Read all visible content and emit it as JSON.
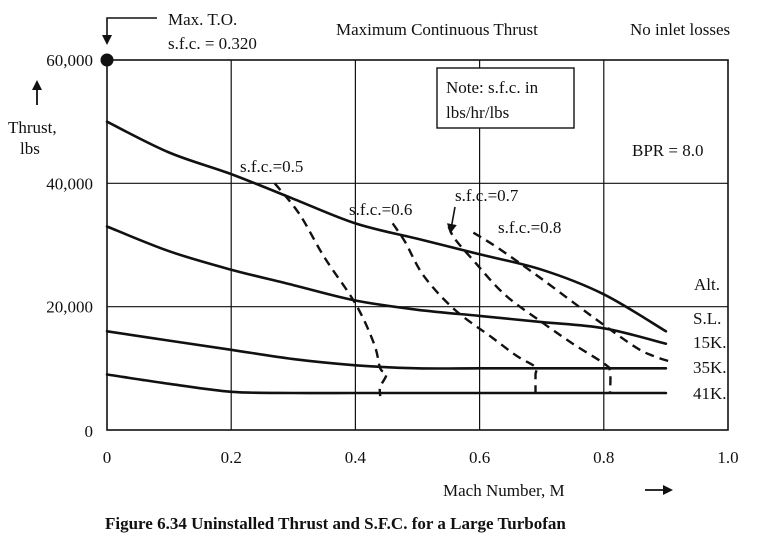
{
  "chart_data": {
    "type": "line",
    "title": "Maximum Continuous Thrust",
    "note_top_right": "No inlet losses",
    "caption": "Figure 6.34  Uninstalled Thrust and S.F.C. for a Large Turbofan",
    "xlabel": "Mach Number, M",
    "ylabel_line1": "Thrust,",
    "ylabel_line2": "lbs",
    "xlim": [
      0,
      1.0
    ],
    "ylim": [
      0,
      60000
    ],
    "x_ticks": [
      "0",
      "0.2",
      "0.4",
      "0.6",
      "0.8",
      "1.0"
    ],
    "y_ticks": [
      "0",
      "20,000",
      "40,000",
      "60,000"
    ],
    "grid": true,
    "max_to": {
      "label_line1": "Max. T.O.",
      "label_line2": "s.f.c. = 0.320",
      "x": 0,
      "y": 60000
    },
    "note_box_line1": "Note: s.f.c. in",
    "note_box_line2": "lbs/hr/lbs",
    "bpr_label": "BPR = 8.0",
    "alt_header": "Alt.",
    "series": [
      {
        "name": "S.L.",
        "points": [
          [
            0,
            50000
          ],
          [
            0.1,
            45000
          ],
          [
            0.2,
            41500
          ],
          [
            0.3,
            37500
          ],
          [
            0.4,
            33500
          ],
          [
            0.5,
            31000
          ],
          [
            0.6,
            28500
          ],
          [
            0.7,
            26000
          ],
          [
            0.8,
            22000
          ],
          [
            0.9,
            16000
          ]
        ]
      },
      {
        "name": "15K.",
        "points": [
          [
            0,
            33000
          ],
          [
            0.1,
            29000
          ],
          [
            0.2,
            26000
          ],
          [
            0.3,
            23500
          ],
          [
            0.4,
            21000
          ],
          [
            0.5,
            19500
          ],
          [
            0.6,
            18500
          ],
          [
            0.7,
            17500
          ],
          [
            0.8,
            16500
          ],
          [
            0.9,
            14000
          ]
        ]
      },
      {
        "name": "35K.",
        "points": [
          [
            0,
            16000
          ],
          [
            0.1,
            14500
          ],
          [
            0.2,
            13000
          ],
          [
            0.3,
            11500
          ],
          [
            0.4,
            10500
          ],
          [
            0.5,
            10000
          ],
          [
            0.6,
            10000
          ],
          [
            0.7,
            10000
          ],
          [
            0.8,
            10000
          ],
          [
            0.9,
            10000
          ]
        ]
      },
      {
        "name": "41K.",
        "points": [
          [
            0,
            9000
          ],
          [
            0.1,
            7500
          ],
          [
            0.2,
            6200
          ],
          [
            0.3,
            6000
          ],
          [
            0.4,
            6000
          ],
          [
            0.5,
            6000
          ],
          [
            0.6,
            6000
          ],
          [
            0.7,
            6000
          ],
          [
            0.8,
            6000
          ],
          [
            0.9,
            6000
          ]
        ]
      }
    ],
    "sfc_lines": [
      {
        "label": "s.f.c.=0.5",
        "points": [
          [
            0.27,
            40000
          ],
          [
            0.31,
            35000
          ],
          [
            0.35,
            28000
          ],
          [
            0.4,
            20500
          ],
          [
            0.43,
            14000
          ],
          [
            0.44,
            10000
          ],
          [
            0.45,
            9000
          ],
          [
            0.44,
            7000
          ],
          [
            0.44,
            5500
          ]
        ]
      },
      {
        "label": "s.f.c.=0.6",
        "points": [
          [
            0.46,
            33500
          ],
          [
            0.48,
            30500
          ],
          [
            0.51,
            25000
          ],
          [
            0.56,
            19500
          ],
          [
            0.62,
            15000
          ],
          [
            0.66,
            12000
          ],
          [
            0.69,
            10200
          ],
          [
            0.69,
            9000
          ],
          [
            0.69,
            6000
          ]
        ]
      },
      {
        "label": "s.f.c.=0.7",
        "points": [
          [
            0.55,
            33000
          ],
          [
            0.56,
            31000
          ],
          [
            0.59,
            27500
          ],
          [
            0.64,
            22000
          ],
          [
            0.7,
            17500
          ],
          [
            0.75,
            14000
          ],
          [
            0.8,
            10800
          ],
          [
            0.81,
            9500
          ],
          [
            0.81,
            6000
          ]
        ],
        "arrow": true
      },
      {
        "label": "s.f.c.=0.8",
        "points": [
          [
            0.59,
            32000
          ],
          [
            0.63,
            29500
          ],
          [
            0.7,
            24500
          ],
          [
            0.78,
            18500
          ],
          [
            0.85,
            13500
          ],
          [
            0.88,
            12000
          ],
          [
            0.91,
            11000
          ]
        ]
      }
    ]
  }
}
